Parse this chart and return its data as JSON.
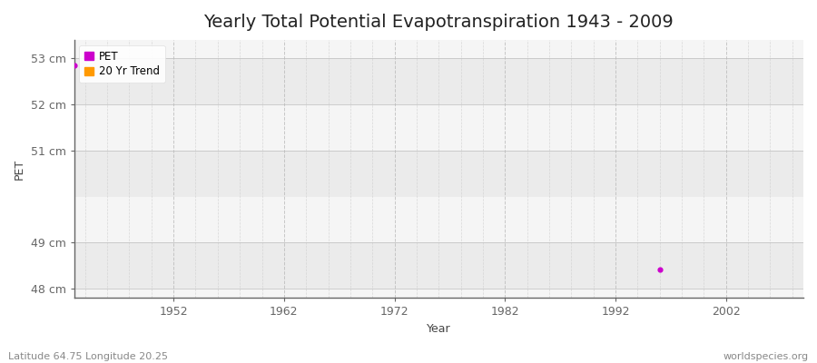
{
  "title": "Yearly Total Potential Evapotranspiration 1943 - 2009",
  "xlabel": "Year",
  "ylabel": "PET",
  "footer_left": "Latitude 64.75 Longitude 20.25",
  "footer_right": "worldspecies.org",
  "xlim": [
    1943,
    2009
  ],
  "ylim": [
    47.8,
    53.4
  ],
  "yticks": [
    48,
    49,
    51,
    52,
    53
  ],
  "ytick_labels": [
    "48 cm",
    "49 cm",
    "51 cm",
    "52 cm",
    "53 cm"
  ],
  "xticks": [
    1952,
    1962,
    1972,
    1982,
    1992,
    2002
  ],
  "pet_points_x": [
    1943,
    1996
  ],
  "pet_points_y": [
    52.85,
    48.42
  ],
  "pet_color": "#cc00cc",
  "trend_color": "#ff9900",
  "background_color": "#ffffff",
  "plot_bg_light": "#f2f2f2",
  "plot_bg_dark": "#e8e8e8",
  "grid_color": "#cccccc",
  "spine_color": "#555555",
  "legend_labels": [
    "PET",
    "20 Yr Trend"
  ],
  "title_fontsize": 14,
  "axis_label_fontsize": 9,
  "tick_fontsize": 9,
  "footer_fontsize": 8,
  "band_ranges": [
    [
      48.0,
      49.0
    ],
    [
      50.0,
      51.0
    ],
    [
      52.0,
      53.0
    ]
  ],
  "band_color": "#e8e8e8"
}
